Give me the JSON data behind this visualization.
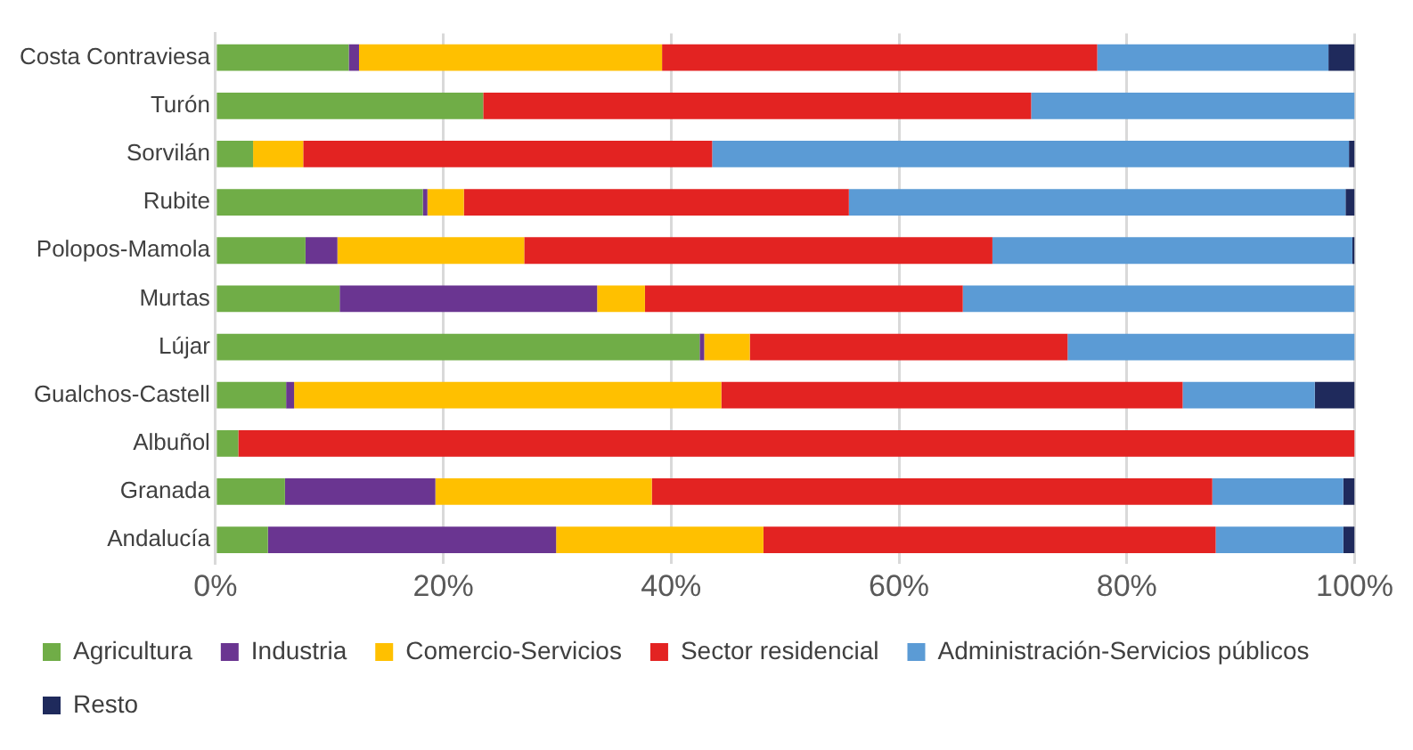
{
  "chart_data": {
    "type": "bar",
    "orientation": "horizontal",
    "stacked": true,
    "categories": [
      "Costa Contraviesa",
      "Turón",
      "Sorvilán",
      "Rubite",
      "Polopos-Mamola",
      "Murtas",
      "Lújar",
      "Gualchos-Castell",
      "Albuñol",
      "Granada",
      "Andalucía"
    ],
    "series": [
      {
        "name": "Agricultura",
        "color": "#70ad47",
        "values": [
          11.7,
          23.5,
          3.3,
          18.2,
          7.9,
          10.9,
          42.5,
          6.2,
          2.0,
          6.1,
          4.6
        ]
      },
      {
        "name": "Industria",
        "color": "#6a3591",
        "values": [
          0.9,
          null,
          null,
          0.4,
          2.8,
          22.6,
          0.4,
          0.7,
          null,
          13.2,
          25.3
        ]
      },
      {
        "name": "Comercio-Servicios",
        "color": "#ffc000",
        "values": [
          26.6,
          null,
          4.4,
          3.2,
          16.4,
          4.2,
          4.0,
          37.5,
          null,
          19.0,
          18.2
        ]
      },
      {
        "name": "Sector residencial",
        "color": "#e32322",
        "values": [
          38.2,
          48.1,
          35.9,
          33.8,
          41.1,
          27.9,
          27.9,
          40.5,
          98.0,
          49.2,
          39.7
        ]
      },
      {
        "name": "Administración-Servicios públicos",
        "color": "#5b9bd5",
        "values": [
          20.3,
          28.4,
          55.9,
          43.6,
          31.6,
          34.4,
          25.2,
          11.6,
          null,
          11.5,
          11.2
        ]
      },
      {
        "name": "Resto",
        "color": "#1f2a5c",
        "values": [
          2.3,
          null,
          0.5,
          0.8,
          0.2,
          null,
          null,
          3.5,
          null,
          1.0,
          1.0
        ]
      }
    ],
    "xlim": [
      0,
      100
    ],
    "xticks": [
      {
        "value": 0,
        "label": "0%"
      },
      {
        "value": 20,
        "label": "20%"
      },
      {
        "value": 40,
        "label": "40%"
      },
      {
        "value": 60,
        "label": "60%"
      },
      {
        "value": 80,
        "label": "80%"
      },
      {
        "value": 100,
        "label": "100%"
      }
    ],
    "grid": "x",
    "legend": "bottom"
  }
}
